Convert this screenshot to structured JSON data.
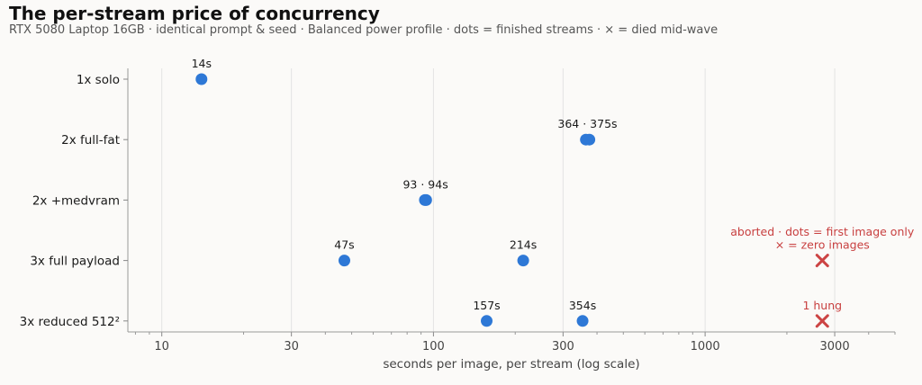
{
  "chart_data": {
    "type": "scatter",
    "title": "The per-stream price of concurrency",
    "subtitle": "RTX 5080 Laptop 16GB · identical prompt & seed · Balanced power profile · dots = finished streams · × = died mid-wave",
    "xlabel": "seconds per image, per stream (log scale)",
    "x_scale": "log",
    "xlim": [
      7.5,
      5000
    ],
    "x_ticks": [
      10,
      30,
      100,
      300,
      1000,
      3000
    ],
    "x_tick_labels": [
      "10",
      "30",
      "100",
      "300",
      "1000",
      "3000"
    ],
    "grid": "vertical major",
    "categories": [
      "1x solo",
      "2x full-fat",
      "2x +medvram",
      "3x full payload",
      "3x reduced 512²"
    ],
    "colors": {
      "finished": "#2e78d6",
      "died": "#cc4444"
    },
    "finished_points": [
      {
        "category": "1x solo",
        "x": 14
      },
      {
        "category": "2x full-fat",
        "x": 364
      },
      {
        "category": "2x full-fat",
        "x": 375
      },
      {
        "category": "2x +medvram",
        "x": 93
      },
      {
        "category": "2x +medvram",
        "x": 94
      },
      {
        "category": "3x full payload",
        "x": 47
      },
      {
        "category": "3x full payload",
        "x": 214
      },
      {
        "category": "3x reduced 512²",
        "x": 157
      },
      {
        "category": "3x reduced 512²",
        "x": 354
      }
    ],
    "died_points": [
      {
        "category": "3x full payload",
        "x": 2700
      },
      {
        "category": "3x reduced 512²",
        "x": 2700
      }
    ],
    "data_labels": [
      {
        "category": "1x solo",
        "x": 14,
        "text": "14s"
      },
      {
        "category": "2x full-fat",
        "x": 369,
        "text": "364 · 375s"
      },
      {
        "category": "2x +medvram",
        "x": 93.5,
        "text": "93 · 94s"
      },
      {
        "category": "3x full payload",
        "x": 47,
        "text": "47s"
      },
      {
        "category": "3x full payload",
        "x": 214,
        "text": "214s"
      },
      {
        "category": "3x reduced 512²",
        "x": 157,
        "text": "157s"
      },
      {
        "category": "3x reduced 512²",
        "x": 354,
        "text": "354s"
      }
    ],
    "annotations": [
      {
        "category": "3x full payload",
        "x": 2700,
        "lines": [
          "aborted · dots = first image only",
          "× = zero images"
        ]
      },
      {
        "category": "3x reduced 512²",
        "x": 2700,
        "lines": [
          "1 hung"
        ]
      }
    ]
  }
}
